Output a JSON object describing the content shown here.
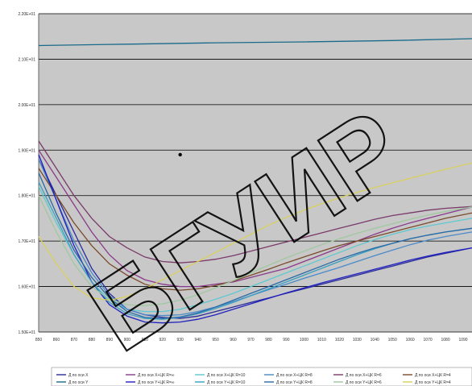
{
  "chart_data": {
    "type": "line",
    "xlim": [
      850,
      1095
    ],
    "ylim": [
      15,
      22
    ],
    "x_ticks": [
      850,
      860,
      870,
      880,
      890,
      900,
      910,
      920,
      930,
      940,
      950,
      960,
      970,
      980,
      990,
      1000,
      1010,
      1020,
      1030,
      1040,
      1050,
      1060,
      1070,
      1080,
      1090
    ],
    "y_ticks": [
      {
        "value": 15,
        "label": "1.50E+01"
      },
      {
        "value": 16,
        "label": "1.60E+01"
      },
      {
        "value": 17,
        "label": "1.70E+01"
      },
      {
        "value": 18,
        "label": "1.80E+01"
      },
      {
        "value": 19,
        "label": "1.90E+01"
      },
      {
        "value": 20,
        "label": "2.00E+01"
      },
      {
        "value": 21,
        "label": "2.10E+01"
      },
      {
        "value": 22,
        "label": "2.20E+01"
      }
    ],
    "grid": true,
    "legend_position": "bottom",
    "marker_point": {
      "x": 930,
      "y": 18.9
    },
    "series": [
      {
        "name": "Д по оси X",
        "color": "#2a2a9a",
        "points": [
          [
            850,
            18.8
          ],
          [
            860,
            18.0
          ],
          [
            870,
            17.2
          ],
          [
            880,
            16.4
          ],
          [
            890,
            15.85
          ],
          [
            900,
            15.5
          ],
          [
            910,
            15.38
          ],
          [
            920,
            15.32
          ],
          [
            930,
            15.3
          ],
          [
            940,
            15.35
          ],
          [
            950,
            15.45
          ],
          [
            960,
            15.55
          ],
          [
            970,
            15.65
          ],
          [
            980,
            15.75
          ],
          [
            990,
            15.85
          ],
          [
            1000,
            15.95
          ],
          [
            1010,
            16.05
          ],
          [
            1020,
            16.15
          ],
          [
            1030,
            16.25
          ],
          [
            1040,
            16.35
          ],
          [
            1050,
            16.45
          ],
          [
            1060,
            16.55
          ],
          [
            1070,
            16.65
          ],
          [
            1080,
            16.73
          ],
          [
            1095,
            16.85
          ]
        ]
      },
      {
        "name": "Д по оси Y",
        "color": "#1a6a8a",
        "points": [
          [
            850,
            21.3
          ],
          [
            900,
            21.33
          ],
          [
            950,
            21.36
          ],
          [
            1000,
            21.38
          ],
          [
            1050,
            21.41
          ],
          [
            1095,
            21.45
          ]
        ]
      },
      {
        "name": "Д по оси X+ЦК R=∞",
        "color": "#8a3a8a",
        "points": [
          [
            850,
            19.0
          ],
          [
            860,
            18.4
          ],
          [
            870,
            17.8
          ],
          [
            880,
            17.2
          ],
          [
            890,
            16.7
          ],
          [
            900,
            16.35
          ],
          [
            910,
            16.15
          ],
          [
            920,
            16.05
          ],
          [
            930,
            16.0
          ],
          [
            940,
            16.0
          ],
          [
            950,
            16.05
          ],
          [
            960,
            16.1
          ],
          [
            970,
            16.2
          ],
          [
            980,
            16.3
          ],
          [
            990,
            16.4
          ],
          [
            1000,
            16.55
          ],
          [
            1010,
            16.7
          ],
          [
            1020,
            16.85
          ],
          [
            1030,
            17.0
          ],
          [
            1040,
            17.15
          ],
          [
            1050,
            17.28
          ],
          [
            1060,
            17.4
          ],
          [
            1070,
            17.5
          ],
          [
            1080,
            17.6
          ],
          [
            1095,
            17.75
          ]
        ]
      },
      {
        "name": "Д по оси X+ЦК R=10",
        "color": "#5fc8d0",
        "points": [
          [
            850,
            18.2
          ],
          [
            860,
            17.4
          ],
          [
            870,
            16.7
          ],
          [
            880,
            16.1
          ],
          [
            890,
            15.7
          ],
          [
            900,
            15.5
          ],
          [
            910,
            15.45
          ],
          [
            920,
            15.45
          ],
          [
            930,
            15.5
          ],
          [
            940,
            15.6
          ],
          [
            950,
            15.72
          ],
          [
            960,
            15.85
          ],
          [
            970,
            16.0
          ],
          [
            980,
            16.15
          ],
          [
            990,
            16.3
          ],
          [
            1000,
            16.45
          ],
          [
            1010,
            16.6
          ],
          [
            1020,
            16.75
          ],
          [
            1030,
            16.9
          ],
          [
            1040,
            17.03
          ],
          [
            1050,
            17.15
          ],
          [
            1060,
            17.25
          ],
          [
            1070,
            17.33
          ],
          [
            1080,
            17.4
          ],
          [
            1095,
            17.5
          ]
        ]
      },
      {
        "name": "Д по оси X+ЦК R=8",
        "color": "#4a8ac8",
        "points": [
          [
            850,
            18.8
          ],
          [
            860,
            17.9
          ],
          [
            870,
            17.0
          ],
          [
            880,
            16.3
          ],
          [
            890,
            15.8
          ],
          [
            900,
            15.5
          ],
          [
            910,
            15.38
          ],
          [
            920,
            15.36
          ],
          [
            930,
            15.38
          ],
          [
            940,
            15.45
          ],
          [
            950,
            15.55
          ],
          [
            960,
            15.67
          ],
          [
            970,
            15.8
          ],
          [
            980,
            15.93
          ],
          [
            990,
            16.05
          ],
          [
            1000,
            16.18
          ],
          [
            1010,
            16.3
          ],
          [
            1020,
            16.42
          ],
          [
            1030,
            16.55
          ],
          [
            1040,
            16.68
          ],
          [
            1050,
            16.8
          ],
          [
            1060,
            16.92
          ],
          [
            1070,
            17.02
          ],
          [
            1080,
            17.1
          ],
          [
            1095,
            17.2
          ]
        ]
      },
      {
        "name": "Д по оси X+ЦК R=6",
        "color": "#7a3a6a",
        "points": [
          [
            850,
            19.2
          ],
          [
            860,
            18.6
          ],
          [
            870,
            18.0
          ],
          [
            880,
            17.5
          ],
          [
            890,
            17.1
          ],
          [
            900,
            16.85
          ],
          [
            910,
            16.65
          ],
          [
            920,
            16.55
          ],
          [
            930,
            16.52
          ],
          [
            940,
            16.55
          ],
          [
            950,
            16.6
          ],
          [
            960,
            16.68
          ],
          [
            970,
            16.78
          ],
          [
            980,
            16.88
          ],
          [
            990,
            16.98
          ],
          [
            1000,
            17.08
          ],
          [
            1010,
            17.18
          ],
          [
            1020,
            17.28
          ],
          [
            1030,
            17.38
          ],
          [
            1040,
            17.48
          ],
          [
            1050,
            17.56
          ],
          [
            1060,
            17.62
          ],
          [
            1070,
            17.68
          ],
          [
            1080,
            17.72
          ],
          [
            1095,
            17.76
          ]
        ]
      },
      {
        "name": "Д по оси X+ЦК R=4",
        "color": "#7a4a2a",
        "points": [
          [
            850,
            18.6
          ],
          [
            860,
            18.0
          ],
          [
            870,
            17.4
          ],
          [
            880,
            16.9
          ],
          [
            890,
            16.5
          ],
          [
            900,
            16.25
          ],
          [
            910,
            16.05
          ],
          [
            920,
            15.95
          ],
          [
            930,
            15.92
          ],
          [
            940,
            15.95
          ],
          [
            950,
            16.02
          ],
          [
            960,
            16.12
          ],
          [
            970,
            16.25
          ],
          [
            980,
            16.38
          ],
          [
            990,
            16.52
          ],
          [
            1000,
            16.65
          ],
          [
            1010,
            16.78
          ],
          [
            1020,
            16.9
          ],
          [
            1030,
            17.0
          ],
          [
            1040,
            17.1
          ],
          [
            1050,
            17.2
          ],
          [
            1060,
            17.3
          ],
          [
            1070,
            17.4
          ],
          [
            1080,
            17.5
          ],
          [
            1095,
            17.62
          ]
        ]
      },
      {
        "name": "Д по оси Y+ЦК R=∞",
        "color": "#2020c0",
        "points": [
          [
            850,
            18.9
          ],
          [
            860,
            17.9
          ],
          [
            870,
            16.9
          ],
          [
            880,
            16.1
          ],
          [
            890,
            15.6
          ],
          [
            900,
            15.35
          ],
          [
            910,
            15.22
          ],
          [
            920,
            15.2
          ],
          [
            930,
            15.22
          ],
          [
            940,
            15.28
          ],
          [
            950,
            15.38
          ],
          [
            960,
            15.5
          ],
          [
            970,
            15.62
          ],
          [
            980,
            15.74
          ],
          [
            990,
            15.86
          ],
          [
            1000,
            15.97
          ],
          [
            1010,
            16.08
          ],
          [
            1020,
            16.18
          ],
          [
            1030,
            16.28
          ],
          [
            1040,
            16.38
          ],
          [
            1050,
            16.48
          ],
          [
            1060,
            16.58
          ],
          [
            1070,
            16.67
          ],
          [
            1080,
            16.75
          ],
          [
            1095,
            16.85
          ]
        ]
      },
      {
        "name": "Д по оси Y+ЦК R=10",
        "color": "#3aa0c0",
        "points": [
          [
            850,
            18.3
          ],
          [
            860,
            17.5
          ],
          [
            870,
            16.7
          ],
          [
            880,
            16.1
          ],
          [
            890,
            15.65
          ],
          [
            900,
            15.4
          ],
          [
            910,
            15.3
          ],
          [
            920,
            15.28
          ],
          [
            930,
            15.32
          ],
          [
            940,
            15.4
          ],
          [
            950,
            15.52
          ],
          [
            960,
            15.65
          ],
          [
            970,
            15.8
          ],
          [
            980,
            15.95
          ],
          [
            990,
            16.1
          ],
          [
            1000,
            16.25
          ],
          [
            1010,
            16.4
          ],
          [
            1020,
            16.55
          ],
          [
            1030,
            16.7
          ],
          [
            1040,
            16.83
          ],
          [
            1050,
            16.95
          ],
          [
            1060,
            17.05
          ],
          [
            1070,
            17.13
          ],
          [
            1080,
            17.2
          ],
          [
            1095,
            17.28
          ]
        ]
      },
      {
        "name": "Д по оси Y+ЦК R=8",
        "color": "#2a6aa8",
        "points": [
          [
            850,
            18.5
          ],
          [
            860,
            17.6
          ],
          [
            870,
            16.8
          ],
          [
            880,
            16.2
          ],
          [
            890,
            15.75
          ],
          [
            900,
            15.45
          ],
          [
            910,
            15.32
          ],
          [
            920,
            15.3
          ],
          [
            930,
            15.33
          ],
          [
            940,
            15.42
          ],
          [
            950,
            15.55
          ],
          [
            960,
            15.7
          ],
          [
            970,
            15.85
          ],
          [
            980,
            16.0
          ],
          [
            990,
            16.15
          ],
          [
            1000,
            16.3
          ],
          [
            1010,
            16.45
          ],
          [
            1020,
            16.6
          ],
          [
            1030,
            16.73
          ],
          [
            1040,
            16.85
          ],
          [
            1050,
            16.95
          ],
          [
            1060,
            17.05
          ],
          [
            1070,
            17.13
          ],
          [
            1080,
            17.2
          ],
          [
            1095,
            17.28
          ]
        ]
      },
      {
        "name": "Д по оси Y+ЦК R=6",
        "color": "#a0c8a0",
        "points": [
          [
            850,
            18.0
          ],
          [
            860,
            17.2
          ],
          [
            870,
            16.5
          ],
          [
            880,
            16.0
          ],
          [
            890,
            15.72
          ],
          [
            900,
            15.6
          ],
          [
            910,
            15.58
          ],
          [
            920,
            15.62
          ],
          [
            930,
            15.7
          ],
          [
            940,
            15.82
          ],
          [
            950,
            15.97
          ],
          [
            960,
            16.13
          ],
          [
            970,
            16.3
          ],
          [
            980,
            16.47
          ],
          [
            990,
            16.63
          ],
          [
            1000,
            16.78
          ],
          [
            1010,
            16.92
          ],
          [
            1020,
            17.05
          ],
          [
            1030,
            17.17
          ],
          [
            1040,
            17.28
          ],
          [
            1050,
            17.38
          ],
          [
            1060,
            17.48
          ],
          [
            1070,
            17.57
          ],
          [
            1080,
            17.65
          ],
          [
            1095,
            17.75
          ]
        ]
      },
      {
        "name": "Д по оси Y+ЦК R=4",
        "color": "#d8d060",
        "points": [
          [
            850,
            17.1
          ],
          [
            860,
            16.5
          ],
          [
            870,
            16.0
          ],
          [
            880,
            15.75
          ],
          [
            890,
            15.7
          ],
          [
            900,
            15.78
          ],
          [
            910,
            15.95
          ],
          [
            920,
            16.15
          ],
          [
            930,
            16.35
          ],
          [
            940,
            16.55
          ],
          [
            950,
            16.75
          ],
          [
            960,
            16.95
          ],
          [
            970,
            17.15
          ],
          [
            980,
            17.35
          ],
          [
            990,
            17.52
          ],
          [
            1000,
            17.68
          ],
          [
            1010,
            17.82
          ],
          [
            1020,
            17.95
          ],
          [
            1030,
            18.07
          ],
          [
            1040,
            18.18
          ],
          [
            1050,
            18.28
          ],
          [
            1060,
            18.38
          ],
          [
            1070,
            18.48
          ],
          [
            1080,
            18.58
          ],
          [
            1095,
            18.72
          ]
        ]
      }
    ]
  }
}
